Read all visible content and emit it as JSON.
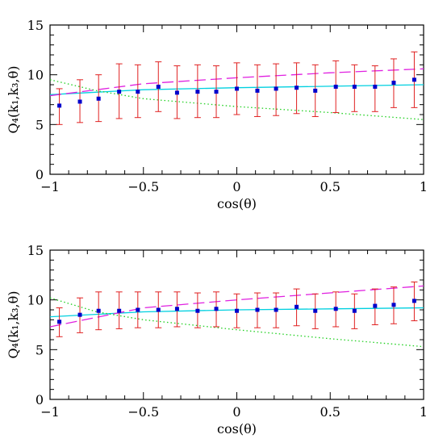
{
  "chart_data": [
    {
      "type": "scatter",
      "xlabel": "cos(θ)",
      "ylabel": "Q₄(k₁,k₃,θ)",
      "xlim": [
        -1,
        1
      ],
      "ylim": [
        0,
        15
      ],
      "xticks": [
        -1,
        -0.5,
        0,
        0.5,
        1
      ],
      "xtick_labels": [
        "−1",
        "−0.5",
        "0",
        "0.5",
        "1"
      ],
      "yticks": [
        0,
        5,
        10,
        15
      ],
      "ytick_labels": [
        "0",
        "5",
        "10",
        "15"
      ],
      "grid": false,
      "legend": "none",
      "series": [
        {
          "kind": "points_with_errorbars",
          "color": "#0000cc",
          "errorbar_color": "#e02020",
          "x": [
            -0.95,
            -0.84,
            -0.74,
            -0.63,
            -0.53,
            -0.42,
            -0.32,
            -0.21,
            -0.11,
            0.0,
            0.11,
            0.21,
            0.32,
            0.42,
            0.53,
            0.63,
            0.74,
            0.84,
            0.95
          ],
          "y": [
            6.9,
            7.3,
            7.6,
            8.3,
            8.3,
            8.8,
            8.2,
            8.3,
            8.3,
            8.6,
            8.4,
            8.6,
            8.7,
            8.4,
            8.8,
            8.8,
            8.8,
            9.2,
            9.5
          ],
          "err_low": [
            5.0,
            5.2,
            5.3,
            5.6,
            5.7,
            6.3,
            5.6,
            5.7,
            5.7,
            6.0,
            5.8,
            5.9,
            6.1,
            5.8,
            6.2,
            6.3,
            6.3,
            6.7,
            6.7
          ],
          "err_high": [
            8.6,
            9.5,
            10.0,
            11.1,
            11.0,
            11.3,
            10.9,
            11.0,
            10.9,
            11.2,
            11.0,
            11.1,
            11.2,
            11.0,
            11.4,
            11.0,
            10.9,
            11.6,
            12.3
          ]
        },
        {
          "kind": "line",
          "style": "solid",
          "color": "#00d0e0",
          "x": [
            -1,
            -0.5,
            0,
            0.5,
            1
          ],
          "y": [
            8.0,
            8.5,
            8.7,
            8.85,
            9.0
          ]
        },
        {
          "kind": "line",
          "style": "dashed",
          "color": "#e020e0",
          "x": [
            -1,
            -0.5,
            0,
            0.5,
            1
          ],
          "y": [
            7.9,
            9.1,
            9.7,
            10.2,
            10.6
          ]
        },
        {
          "kind": "line",
          "style": "dotted",
          "color": "#20d020",
          "x": [
            -1,
            -0.75,
            -0.5,
            0,
            0.5,
            1
          ],
          "y": [
            9.5,
            8.4,
            7.6,
            6.8,
            6.2,
            5.5
          ]
        }
      ]
    },
    {
      "type": "scatter",
      "xlabel": "cos(θ)",
      "ylabel": "Q₄(k₁,k₃,θ)",
      "xlim": [
        -1,
        1
      ],
      "ylim": [
        0,
        15
      ],
      "xticks": [
        -1,
        -0.5,
        0,
        0.5,
        1
      ],
      "xtick_labels": [
        "−1",
        "−0.5",
        "0",
        "0.5",
        "1"
      ],
      "yticks": [
        0,
        5,
        10,
        15
      ],
      "ytick_labels": [
        "0",
        "5",
        "10",
        "15"
      ],
      "grid": false,
      "legend": "none",
      "series": [
        {
          "kind": "points_with_errorbars",
          "color": "#0000cc",
          "errorbar_color": "#e02020",
          "x": [
            -0.95,
            -0.84,
            -0.74,
            -0.63,
            -0.53,
            -0.42,
            -0.32,
            -0.21,
            -0.11,
            0.0,
            0.11,
            0.21,
            0.32,
            0.42,
            0.53,
            0.63,
            0.74,
            0.84,
            0.95
          ],
          "y": [
            7.8,
            8.5,
            8.9,
            8.9,
            9.0,
            9.0,
            9.1,
            8.9,
            9.1,
            8.9,
            9.0,
            9.0,
            9.3,
            8.9,
            9.1,
            8.9,
            9.4,
            9.5,
            9.9
          ],
          "err_low": [
            6.3,
            6.7,
            7.0,
            7.1,
            7.2,
            7.2,
            7.3,
            7.2,
            7.3,
            7.2,
            7.2,
            7.2,
            7.4,
            7.1,
            7.3,
            7.1,
            7.5,
            7.6,
            7.9
          ],
          "err_high": [
            9.2,
            10.2,
            10.8,
            10.8,
            10.8,
            10.8,
            10.8,
            10.7,
            10.8,
            10.6,
            10.7,
            10.7,
            11.1,
            10.6,
            10.8,
            10.6,
            11.1,
            11.3,
            11.8
          ]
        },
        {
          "kind": "line",
          "style": "solid",
          "color": "#00d0e0",
          "x": [
            -1,
            -0.5,
            0,
            0.5,
            1
          ],
          "y": [
            8.3,
            8.8,
            9.0,
            9.1,
            9.2
          ]
        },
        {
          "kind": "line",
          "style": "dashed",
          "color": "#e020e0",
          "x": [
            -1,
            -0.5,
            0,
            0.5,
            1
          ],
          "y": [
            7.3,
            9.2,
            10.0,
            10.7,
            11.4
          ]
        },
        {
          "kind": "line",
          "style": "dotted",
          "color": "#20d020",
          "x": [
            -1,
            -0.75,
            -0.5,
            0,
            0.5,
            1
          ],
          "y": [
            10.2,
            8.8,
            8.0,
            7.0,
            6.1,
            5.3
          ]
        }
      ]
    }
  ]
}
